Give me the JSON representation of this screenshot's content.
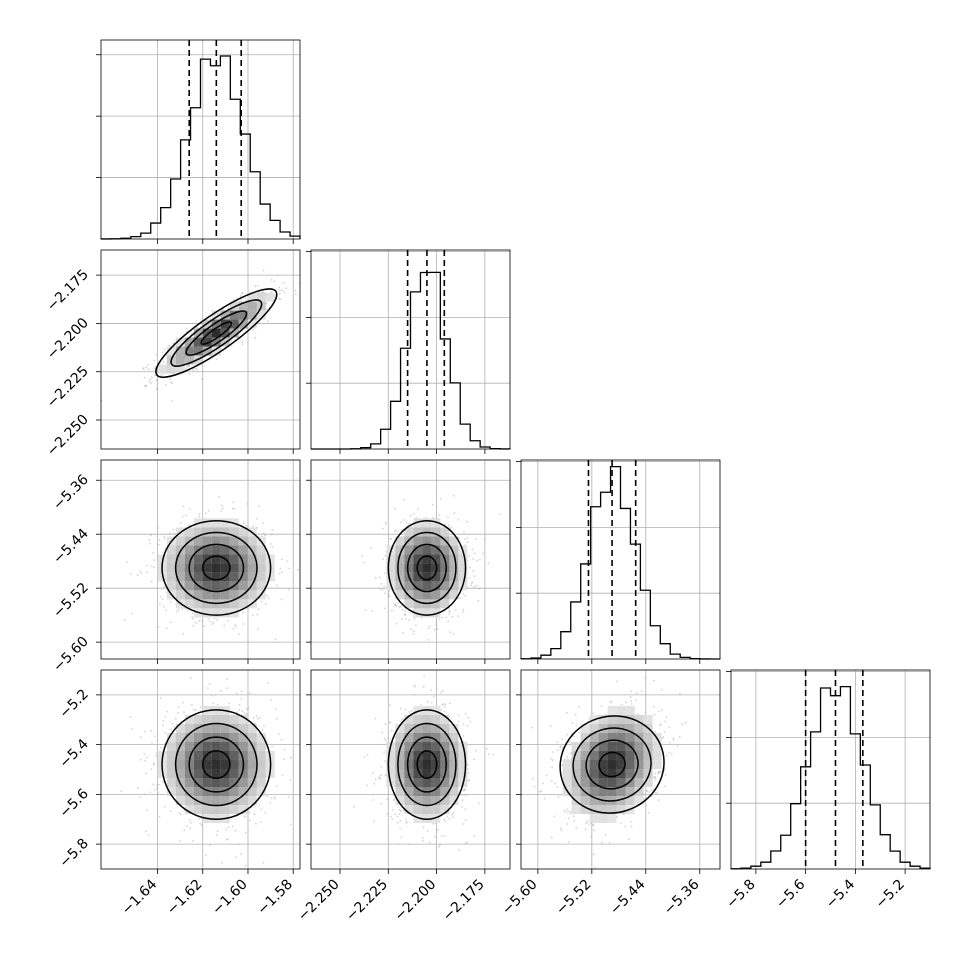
{
  "chart_data": {
    "type": "corner",
    "n_params": 4,
    "grid": true,
    "parameters": [
      {
        "index": 0,
        "range": [
          -1.665,
          -1.577
        ],
        "mean": -1.614,
        "sigma": 0.012,
        "peak_count": 15,
        "quantiles": [
          -1.626,
          -1.614,
          -1.603
        ],
        "ticks": [
          -1.64,
          -1.62,
          -1.6,
          -1.58
        ],
        "tick_labels": [
          "−1.64",
          "−1.62",
          "−1.60",
          "−1.58"
        ]
      },
      {
        "index": 1,
        "range": [
          -2.265,
          -2.162
        ],
        "mean": -2.205,
        "sigma": 0.01,
        "peak_count": 14,
        "quantiles": [
          -2.215,
          -2.205,
          -2.196
        ],
        "ticks": [
          -2.25,
          -2.225,
          -2.2,
          -2.175
        ],
        "tick_labels": [
          "−2.250",
          "−2.225",
          "−2.200",
          "−2.175"
        ]
      },
      {
        "index": 2,
        "range": [
          -5.625,
          -5.33
        ],
        "mean": -5.49,
        "sigma": 0.035,
        "peak_count": 14,
        "quantiles": [
          -5.525,
          -5.49,
          -5.455
        ],
        "ticks": [
          -5.6,
          -5.52,
          -5.44,
          -5.36
        ],
        "tick_labels": [
          "−5.60",
          "−5.52",
          "−5.44",
          "−5.36"
        ]
      },
      {
        "index": 3,
        "range": [
          -5.9,
          -5.1
        ],
        "mean": -5.48,
        "sigma": 0.11,
        "peak_count": 14,
        "quantiles": [
          -5.6,
          -5.48,
          -5.37
        ],
        "ticks": [
          -5.8,
          -5.6,
          -5.4,
          -5.2
        ],
        "tick_labels": [
          "−5.8",
          "−5.6",
          "−5.4",
          "−5.2"
        ]
      }
    ],
    "hist_tick_counts": [
      5,
      10,
      15
    ],
    "correlations": [
      {
        "x": 0,
        "y": 1,
        "rho": 0.88
      },
      {
        "x": 0,
        "y": 2,
        "rho": 0.0
      },
      {
        "x": 1,
        "y": 2,
        "rho": 0.0
      },
      {
        "x": 0,
        "y": 3,
        "rho": 0.0
      },
      {
        "x": 1,
        "y": 3,
        "rho": 0.0
      },
      {
        "x": 2,
        "y": 3,
        "rho": 0.25
      }
    ],
    "contour_levels_sigma": [
      0.5,
      1.0,
      1.5,
      2.0
    ],
    "colors": {
      "points": "#aaaaaa",
      "density": "#000000",
      "lines": "#000000"
    }
  }
}
